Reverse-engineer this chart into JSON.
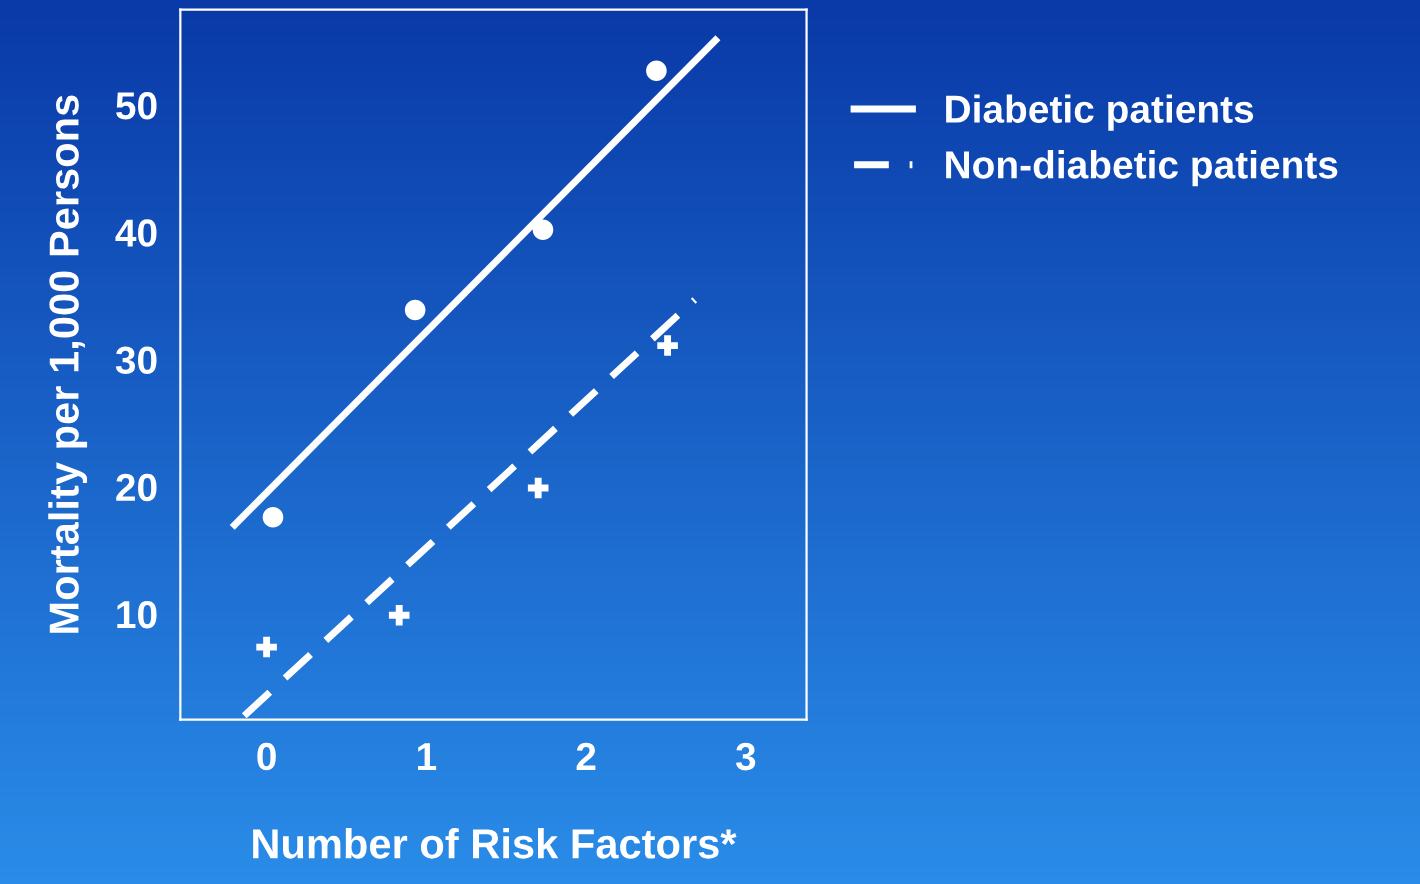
{
  "chart_data": {
    "type": "scatter",
    "xlabel": "Number of Risk Factors*",
    "ylabel": "Mortality per 1,000 Persons",
    "xlim": [
      -0.54,
      3.38
    ],
    "ylim": [
      1.7,
      57.5
    ],
    "xticks": [
      0,
      1,
      2,
      3
    ],
    "yticks": [
      10,
      20,
      30,
      40,
      50
    ],
    "grid": false,
    "legend": "right",
    "series": [
      {
        "marker": "circle",
        "color": "#ffffff",
        "x": [
          0.04,
          0.93,
          1.73,
          2.44
        ],
        "values": [
          17.6,
          33.9,
          40.2,
          52.7
        ]
      },
      {
        "marker": "cross",
        "color": "#ffffff",
        "x": [
          0.0,
          0.83,
          1.7,
          2.51
        ],
        "values": [
          7.4,
          9.9,
          19.9,
          31.1
        ]
      },
      {
        "type": "line",
        "name": "Diabetic patients",
        "line_style": "solid",
        "color": "#ffffff",
        "x": [
          -0.2,
          2.81
        ],
        "values": [
          17.0,
          55.1
        ]
      },
      {
        "type": "line",
        "name": "Non-diabetic patients",
        "line_style": "dashed",
        "color": "#ffffff",
        "x": [
          -0.14,
          2.68
        ],
        "values": [
          2.0,
          34.7
        ]
      }
    ]
  }
}
